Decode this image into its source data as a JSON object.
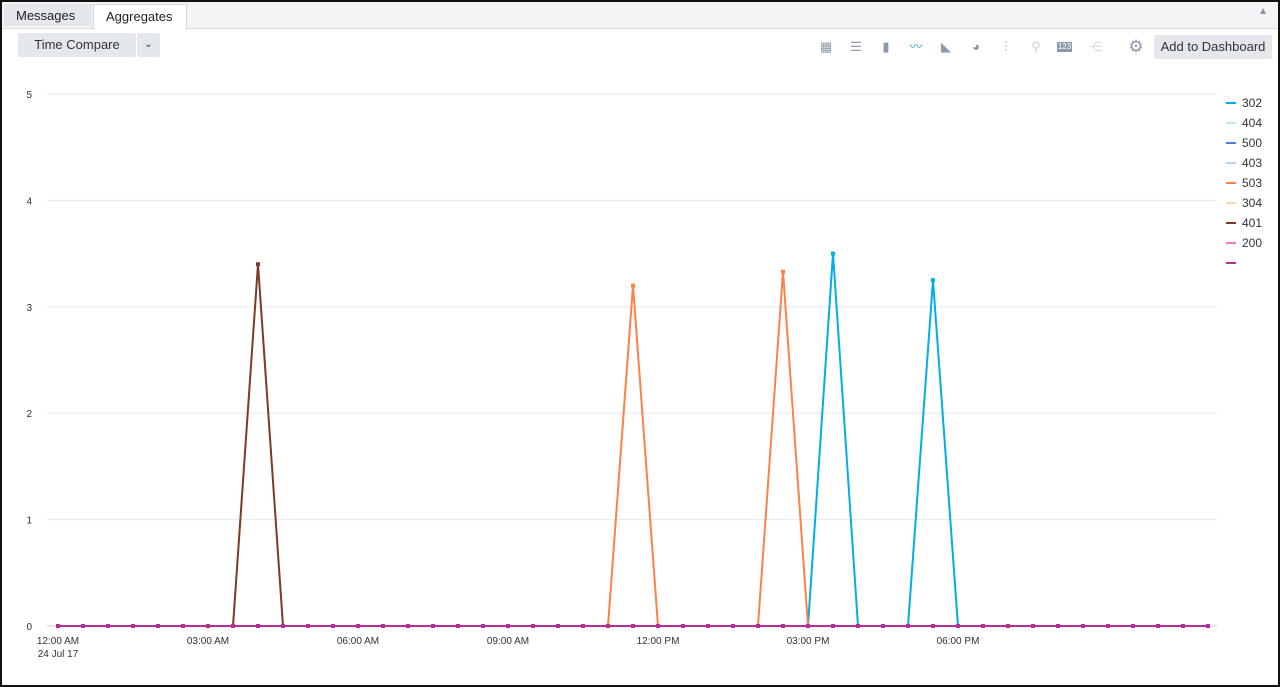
{
  "tabs": [
    {
      "label": "Messages",
      "active": false
    },
    {
      "label": "Aggregates",
      "active": true
    }
  ],
  "toolbar": {
    "time_compare": "Time Compare",
    "add_to_dashboard": "Add to Dashboard",
    "icons": [
      "table-icon",
      "horizontal-bar-icon",
      "column-chart-icon",
      "line-chart-icon",
      "area-chart-icon",
      "pie-chart-icon",
      "box-plot-icon",
      "map-icon",
      "single-value-icon",
      "sankey-icon",
      "gear-icon"
    ],
    "active_icon": "line-chart-icon",
    "accent": "#1ba1e2"
  },
  "chart_data": {
    "type": "line",
    "x_labels": [
      "12:00 AM",
      "03:00 AM",
      "06:00 AM",
      "09:00 AM",
      "12:00 PM",
      "03:00 PM",
      "06:00 PM"
    ],
    "x_sublabel": "24 Jul 17",
    "x_interval_minutes": 30,
    "x_range": [
      "12:00 AM",
      "11:00 PM"
    ],
    "ylim": [
      0,
      5
    ],
    "yticks": [
      0,
      1,
      2,
      3,
      4,
      5
    ],
    "grid": true,
    "legend_position": "right",
    "series": [
      {
        "name": "302",
        "color": "#00aee8",
        "peaks": {
          "15:30": 3.5,
          "17:30": 3.25
        }
      },
      {
        "name": "404",
        "color": "#b8e8f0",
        "peaks": {}
      },
      {
        "name": "500",
        "color": "#4a7ee8",
        "peaks": {}
      },
      {
        "name": "403",
        "color": "#b8d4f8",
        "peaks": {}
      },
      {
        "name": "503",
        "color": "#ff8048",
        "peaks": {
          "11:30": 3.2,
          "14:30": 3.33
        }
      },
      {
        "name": "304",
        "color": "#ffd8a8",
        "peaks": {}
      },
      {
        "name": "401",
        "color": "#7a3a28",
        "peaks": {
          "04:00": 3.4
        }
      },
      {
        "name": "200",
        "color": "#ff70c0",
        "peaks": {}
      },
      {
        "name": "",
        "color": "#b0309c",
        "peaks": {}
      }
    ]
  }
}
